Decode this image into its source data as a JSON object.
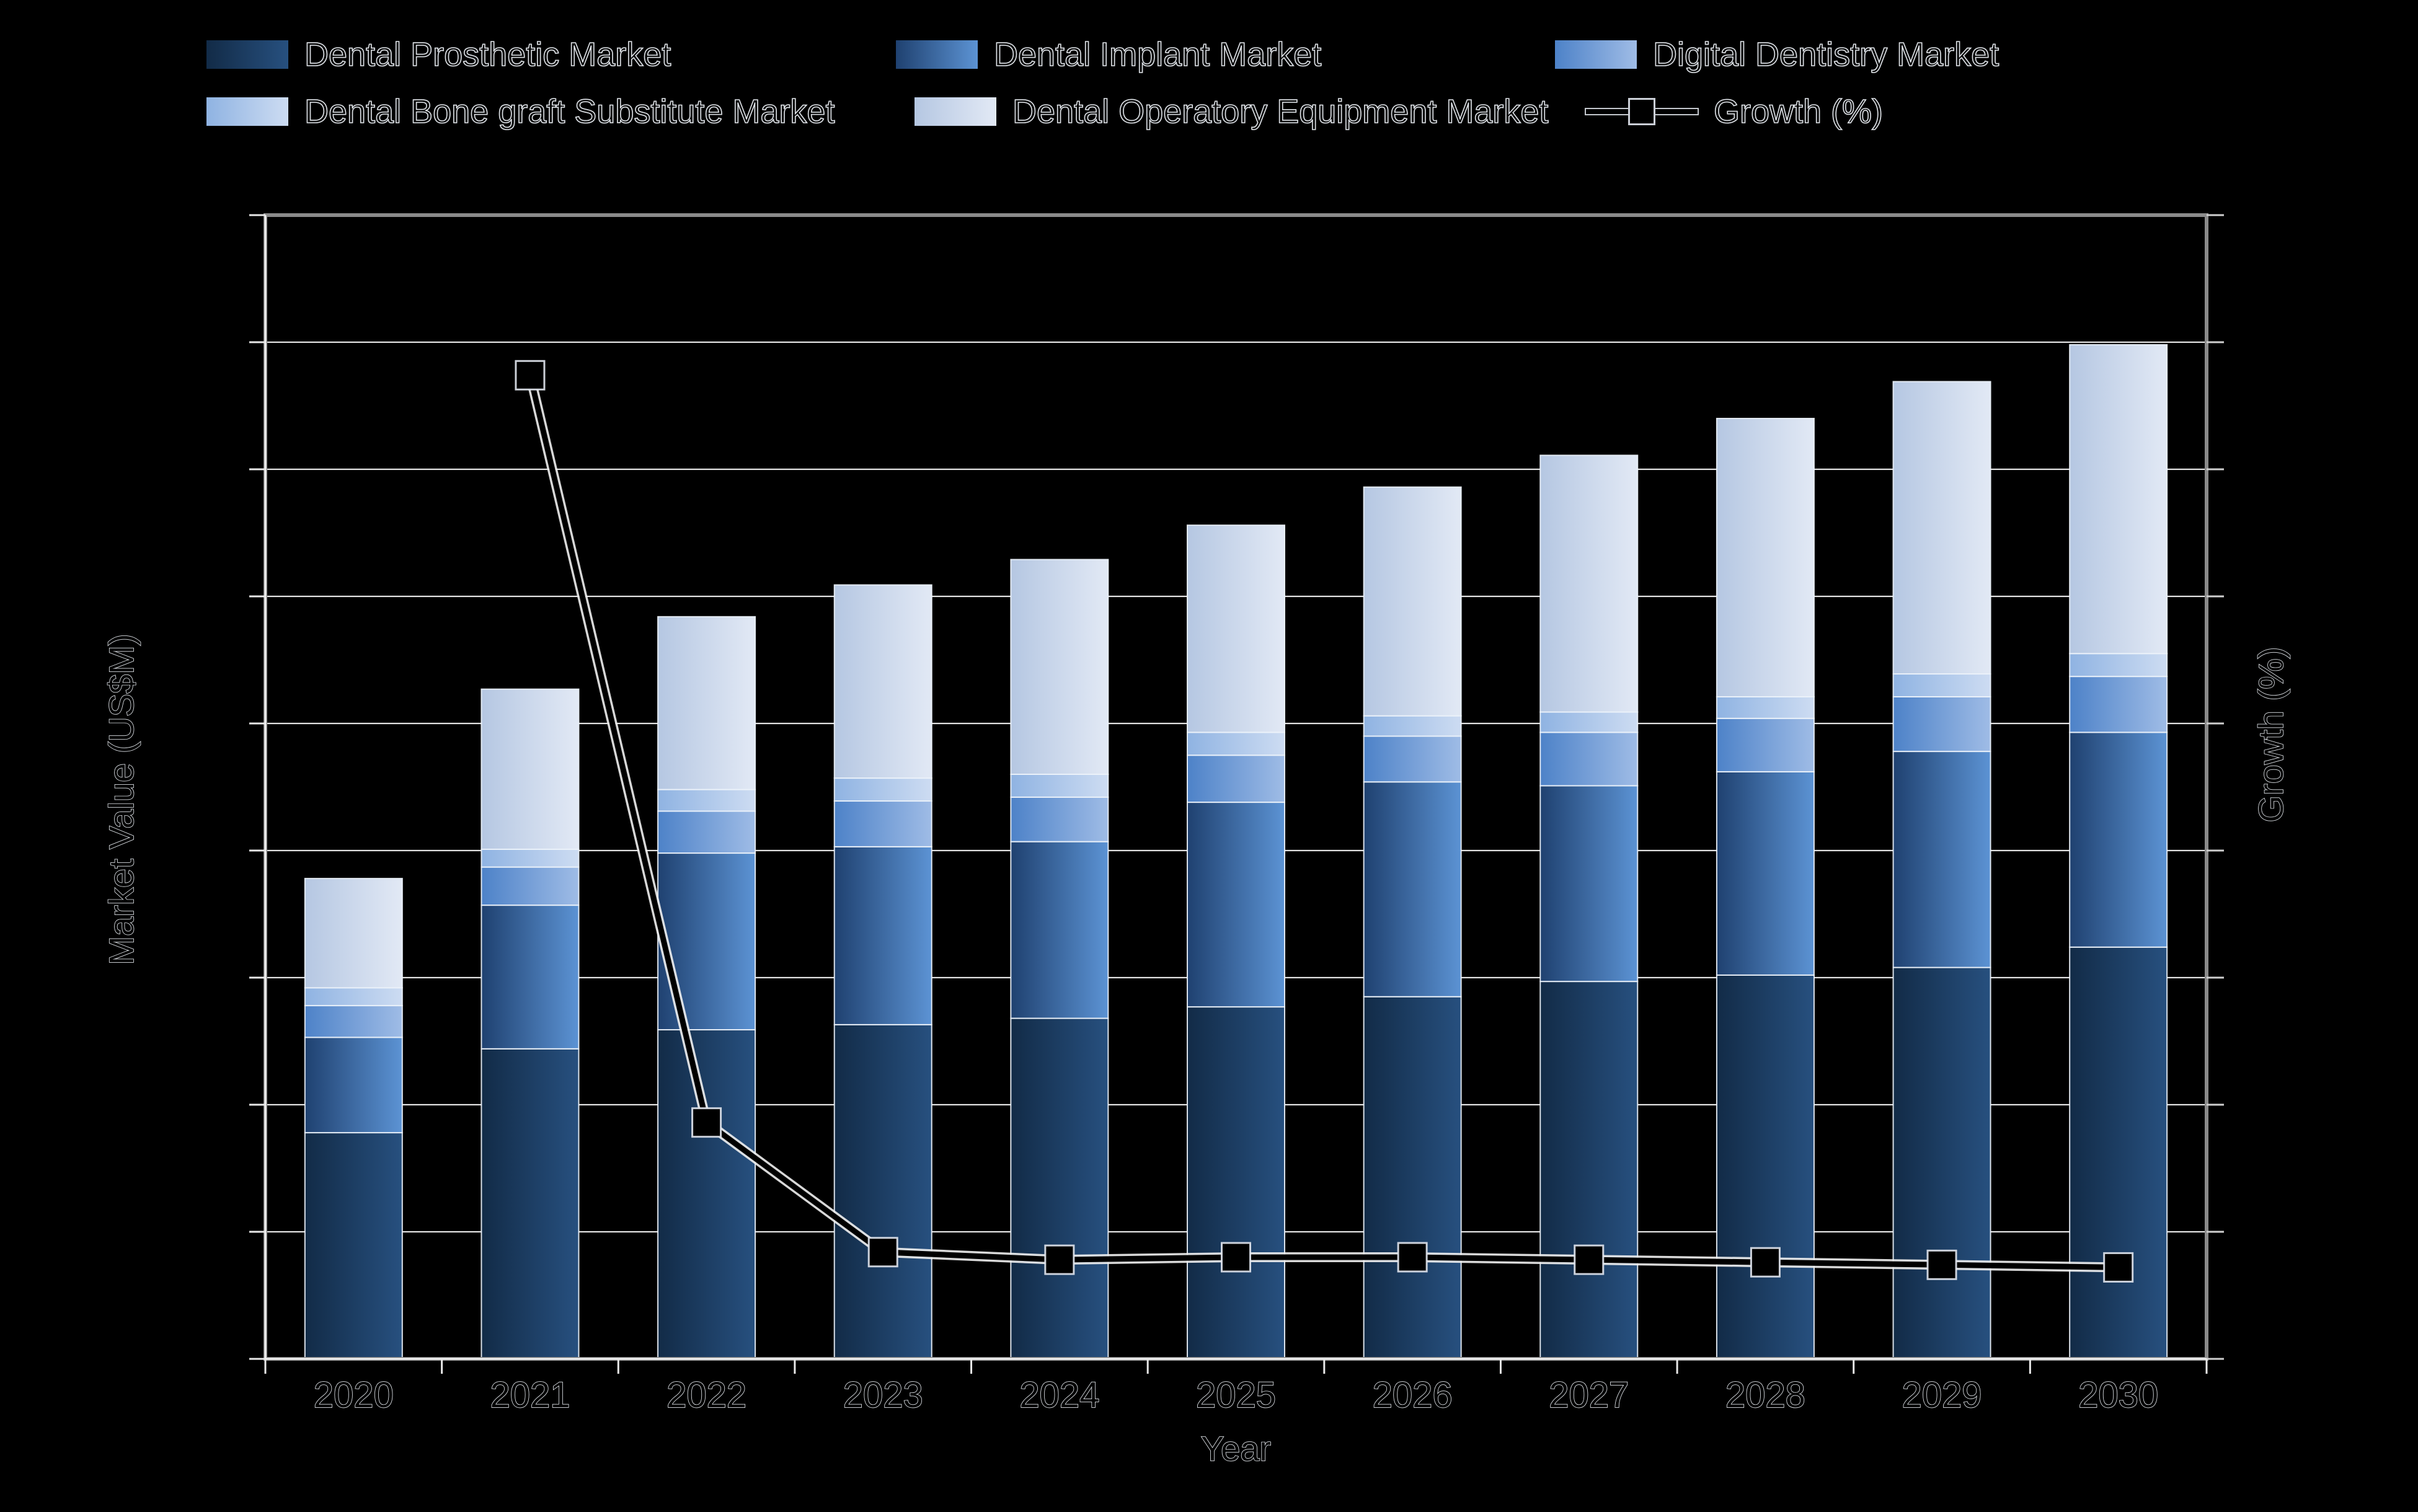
{
  "background_color": "#000000",
  "text_effect": "black glyphs with thin white outline (anti-aliased text over dark background)",
  "chart_data": {
    "type": "bar-line-combo",
    "bar_mode": "stacked",
    "categories": [
      "2020",
      "2021",
      "2022",
      "2023",
      "2024",
      "2025",
      "2026",
      "2027",
      "2028",
      "2029",
      "2030"
    ],
    "series": [
      {
        "name": "Dental Prosthetic Market",
        "values": [
          890,
          1220,
          1295,
          1315,
          1340,
          1385,
          1425,
          1485,
          1510,
          1540,
          1620
        ],
        "color_start": "#122b47",
        "color_end": "#27507f"
      },
      {
        "name": "Dental Implant Market",
        "values": [
          375,
          565,
          695,
          700,
          695,
          805,
          845,
          770,
          800,
          850,
          845
        ],
        "color_start": "#1f4170",
        "color_end": "#5c93d4"
      },
      {
        "name": "Digital Dentistry Market",
        "values": [
          125,
          150,
          165,
          180,
          175,
          185,
          180,
          210,
          210,
          215,
          220
        ],
        "color_start": "#4d82c8",
        "color_end": "#9fbce6"
      },
      {
        "name": "Dental Bone graft Substitute Market",
        "values": [
          70,
          70,
          85,
          90,
          90,
          90,
          80,
          80,
          85,
          90,
          90
        ],
        "color_start": "#8fb3e2",
        "color_end": "#cddcf2"
      },
      {
        "name": "Dental Operatory Equipment Market",
        "values": [
          430,
          630,
          680,
          760,
          845,
          815,
          900,
          1010,
          1095,
          1150,
          1215
        ],
        "color_start": "#b5c7e2",
        "color_end": "#e2e9f5"
      }
    ],
    "line_series": {
      "name": "Growth (%)",
      "values": [
        null,
        38.7,
        9.3,
        4.2,
        3.9,
        4.0,
        4.0,
        3.9,
        3.8,
        3.7,
        3.6
      ],
      "color": "#000000",
      "outline_color": "#ffffff",
      "marker": "square"
    },
    "xlabel": "Year",
    "ylabel": "Market Value (US$M)",
    "y2label": "Growth (%)",
    "ylim": [
      0,
      4500
    ],
    "y_tick_step": 500,
    "y2lim": [
      0,
      45
    ],
    "y2_tick_step": 5,
    "grid": true,
    "tick_labels_visible": false,
    "legend_position": "top",
    "gridline_color": "#f0f0f0",
    "plot_border_color": "#8a8a8a",
    "bar_totals": [
      1890,
      2635,
      2920,
      3045,
      3145,
      3280,
      3430,
      3555,
      3700,
      3845,
      3990
    ]
  }
}
